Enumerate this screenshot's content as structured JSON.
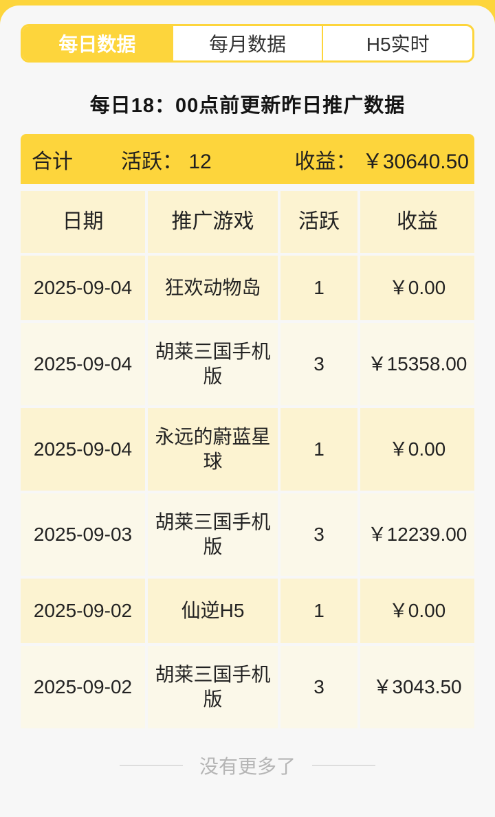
{
  "theme": {
    "yellow": "#fdd53c",
    "cream_row": "#fcf3d1",
    "ivory_row": "#fbf8e9",
    "page_bg": "#f7f7f7"
  },
  "tabs": [
    {
      "label": "每日数据",
      "active": true
    },
    {
      "label": "每月数据",
      "active": false
    },
    {
      "label": "H5实时",
      "active": false
    }
  ],
  "notice": "每日18：00点前更新昨日推广数据",
  "summary": {
    "total_label": "合计",
    "active_label": "活跃：",
    "active_value": "12",
    "revenue_label": "收益：",
    "revenue_value": "￥30640.50"
  },
  "table": {
    "headers": {
      "date": "日期",
      "game": "推广游戏",
      "active": "活跃",
      "revenue": "收益"
    },
    "rows": [
      {
        "date": "2025-09-04",
        "game": "狂欢动物岛",
        "active": "1",
        "revenue": "￥0.00"
      },
      {
        "date": "2025-09-04",
        "game": "胡莱三国手机版",
        "active": "3",
        "revenue": "￥15358.00"
      },
      {
        "date": "2025-09-04",
        "game": "永远的蔚蓝星球",
        "active": "1",
        "revenue": "￥0.00"
      },
      {
        "date": "2025-09-03",
        "game": "胡莱三国手机版",
        "active": "3",
        "revenue": "￥12239.00"
      },
      {
        "date": "2025-09-02",
        "game": "仙逆H5",
        "active": "1",
        "revenue": "￥0.00"
      },
      {
        "date": "2025-09-02",
        "game": "胡莱三国手机版",
        "active": "3",
        "revenue": "￥3043.50"
      }
    ]
  },
  "footer": {
    "no_more": "没有更多了"
  }
}
